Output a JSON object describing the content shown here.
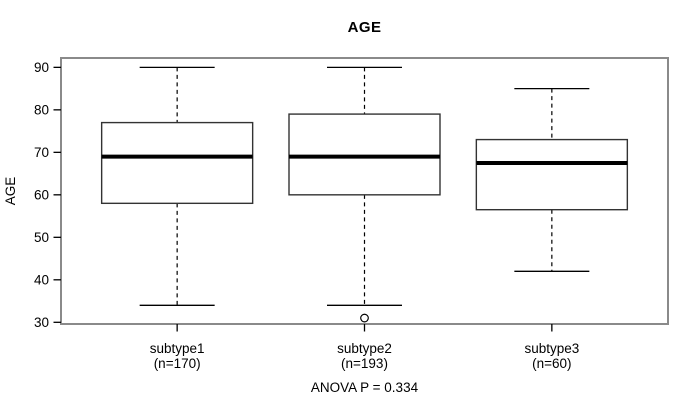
{
  "title": "AGE",
  "footer": "ANOVA P = 0.334",
  "colors": {
    "background": "#ffffff",
    "frame": "#8a8a8a",
    "line": "#000000",
    "box_border": "#333333",
    "box_fill": "#ffffff",
    "text": "#000000"
  },
  "chart_data": {
    "type": "boxplot",
    "title": "AGE",
    "ylabel": "AGE",
    "xlabel": "",
    "ylim": [
      29.6,
      92.2
    ],
    "yticks": [
      30,
      40,
      50,
      60,
      70,
      80,
      90
    ],
    "grid": false,
    "categories": [
      "subtype1",
      "subtype2",
      "subtype3"
    ],
    "category_sublabels": [
      "(n=170)",
      "(n=193)",
      "(n=60)"
    ],
    "annotation": "ANOVA P = 0.334",
    "groups": [
      {
        "label": "subtype1",
        "n": 170,
        "whisker_low": 34,
        "q1": 58,
        "median": 69,
        "q3": 77,
        "whisker_high": 90,
        "outliers": []
      },
      {
        "label": "subtype2",
        "n": 193,
        "whisker_low": 34,
        "q1": 60,
        "median": 69,
        "q3": 79,
        "whisker_high": 90,
        "outliers": [
          31
        ]
      },
      {
        "label": "subtype3",
        "n": 60,
        "whisker_low": 42,
        "q1": 56.5,
        "median": 67.5,
        "q3": 73,
        "whisker_high": 85,
        "outliers": []
      }
    ]
  }
}
